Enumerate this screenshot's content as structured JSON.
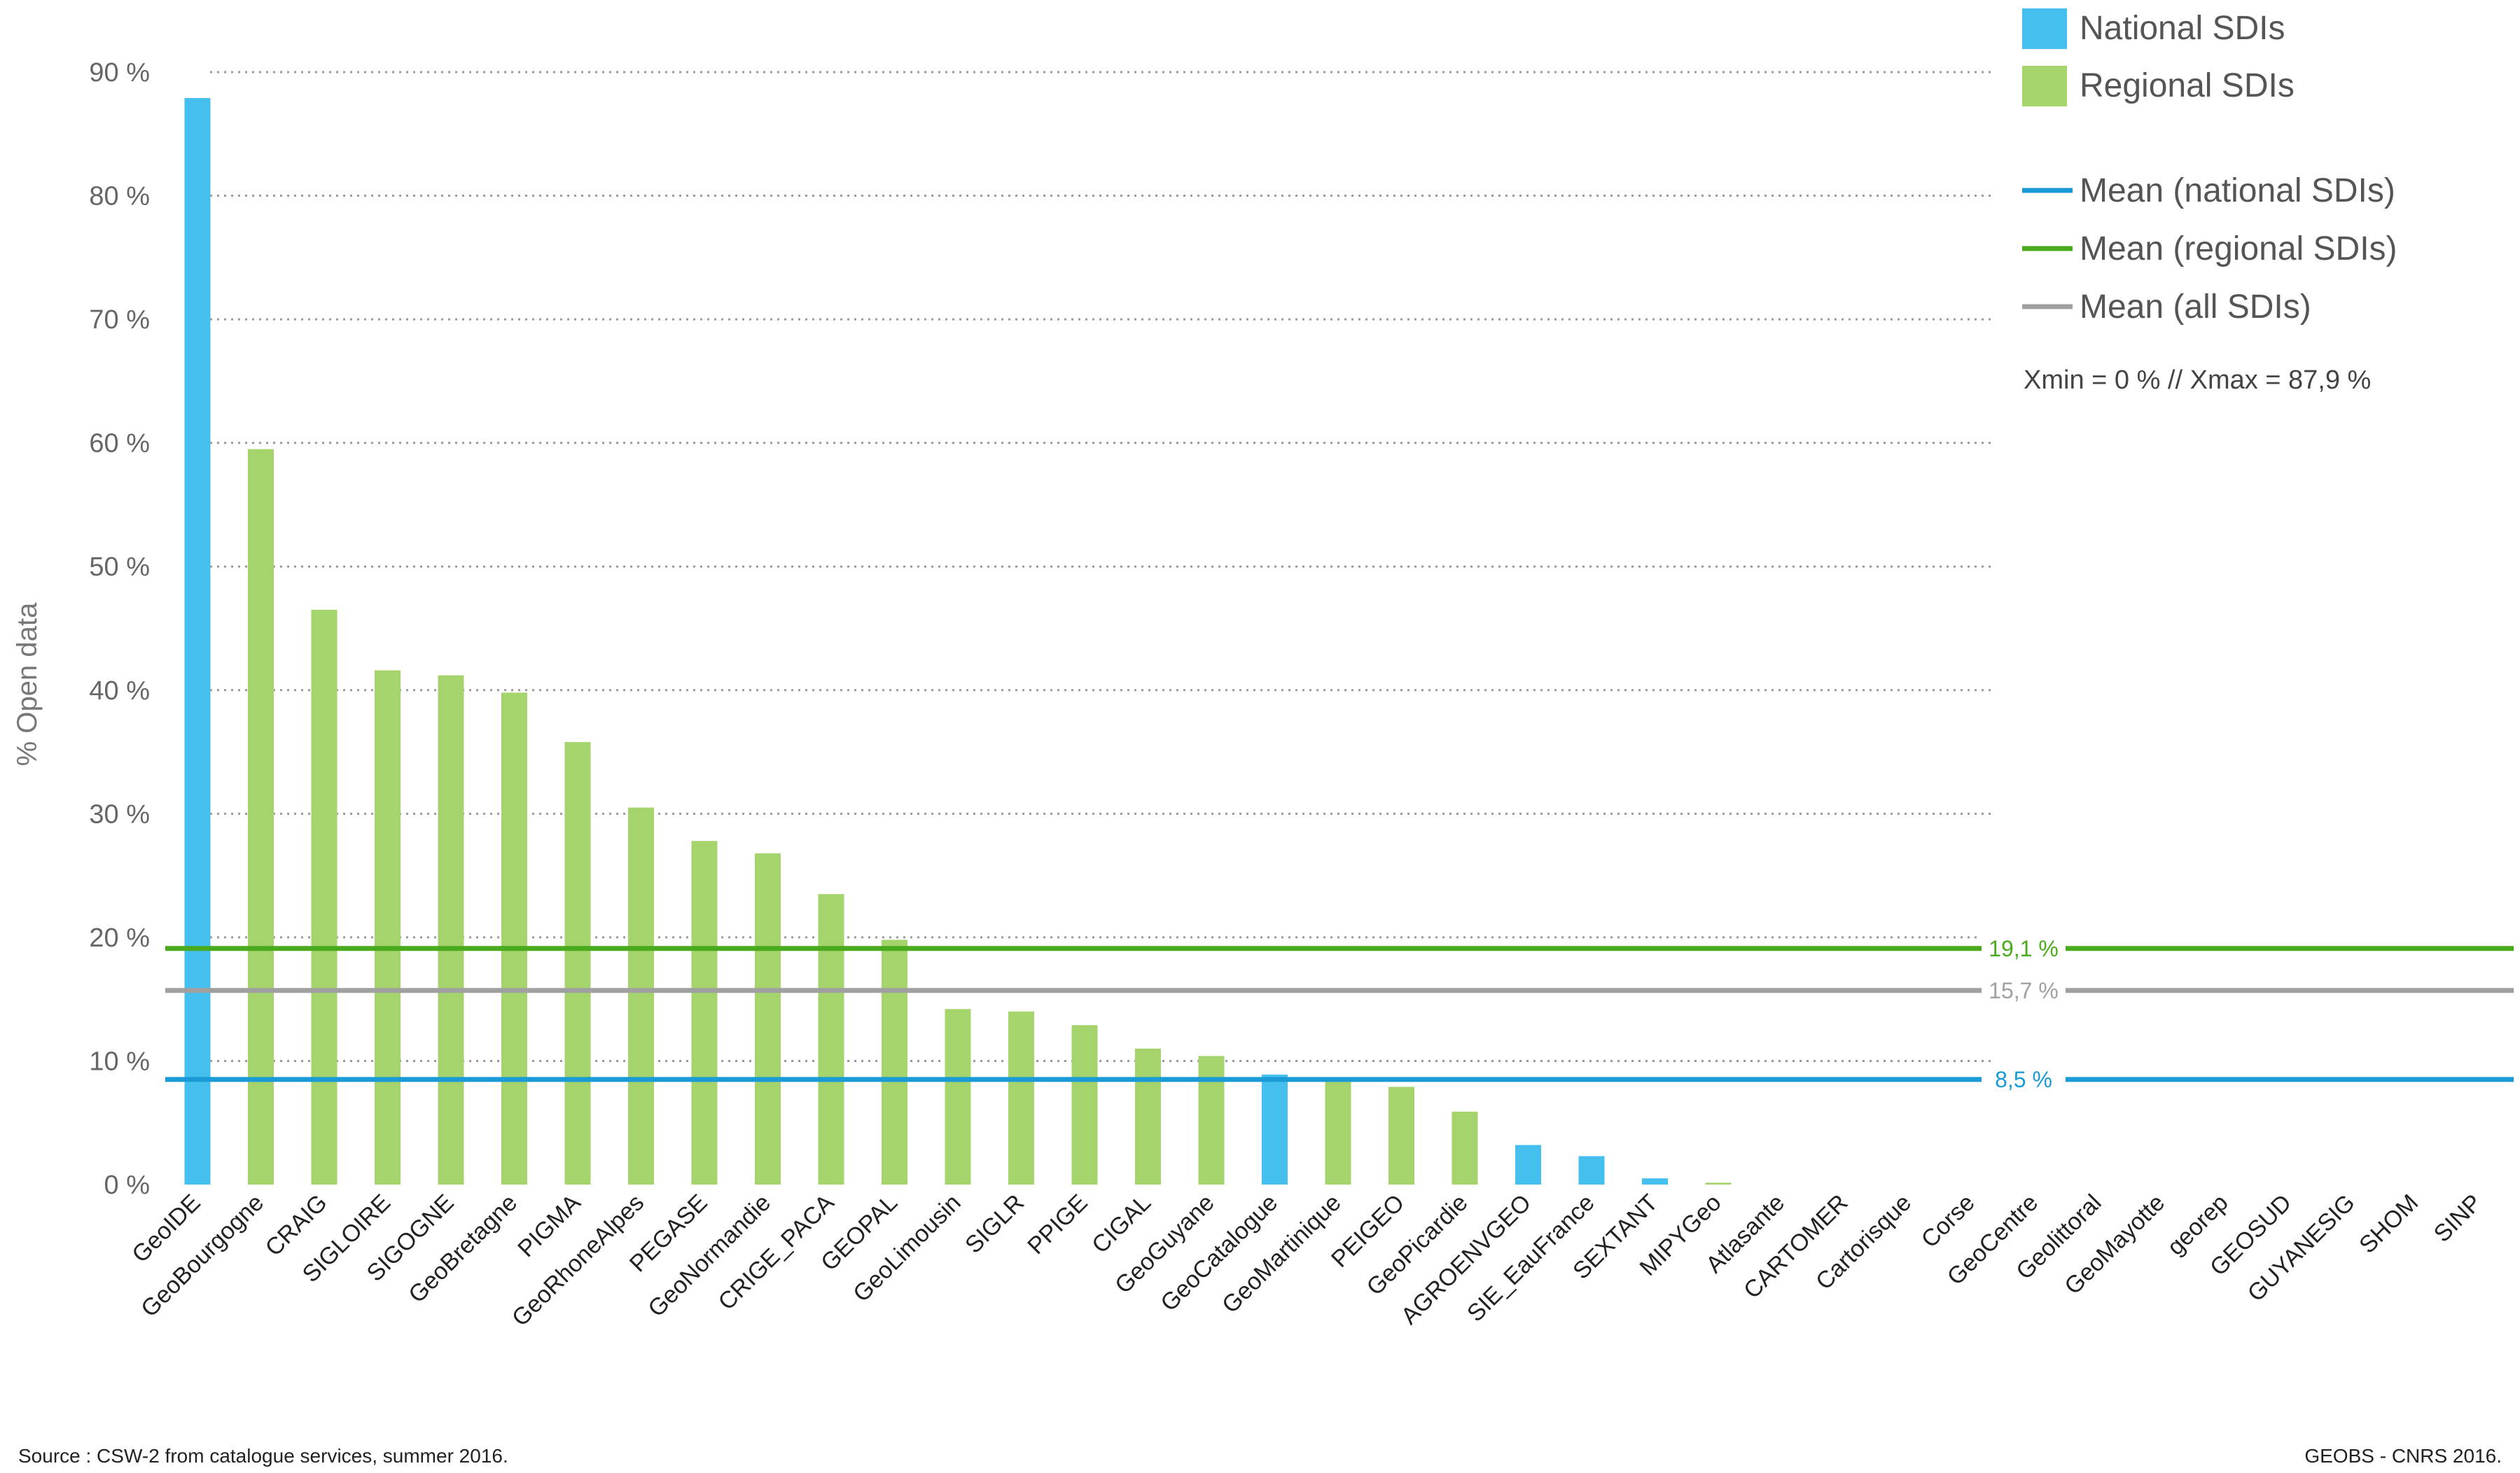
{
  "chart_data": {
    "type": "bar",
    "ylabel": "% Open data",
    "ylim": [
      0,
      90
    ],
    "yticks": [
      0,
      10,
      20,
      30,
      40,
      50,
      60,
      70,
      80,
      90
    ],
    "ytick_labels": [
      "0 %",
      "10 %",
      "20 %",
      "30 %",
      "40 %",
      "50 %",
      "60 %",
      "70 %",
      "80 %",
      "90 %"
    ],
    "grid": "horizontal dotted",
    "legend_position": "top-right",
    "categories": [
      "GeoIDE",
      "GeoBourgogne",
      "CRAIG",
      "SIGLOIRE",
      "SIGOGNE",
      "GeoBretagne",
      "PIGMA",
      "GeoRhoneAlpes",
      "PEGASE",
      "GeoNormandie",
      "CRIGE_PACA",
      "GEOPAL",
      "GeoLimousin",
      "SIGLR",
      "PPIGE",
      "CIGAL",
      "GeoGuyane",
      "GeoCatalogue",
      "GeoMartinique",
      "PEIGEO",
      "GeoPicardie",
      "AGROENVGEO",
      "SIE_EauFrance",
      "SEXTANT",
      "MIPYGeo",
      "Atlasante",
      "CARTOMER",
      "Cartorisque",
      "Corse",
      "GeoCentre",
      "Geolittoral",
      "GeoMayotte",
      "georep",
      "GEOSUD",
      "GUYANESIG",
      "SHOM",
      "SINP"
    ],
    "values": [
      87.9,
      59.5,
      46.5,
      41.6,
      41.2,
      39.8,
      35.8,
      30.5,
      27.8,
      26.8,
      23.5,
      19.8,
      14.2,
      14.0,
      12.9,
      11.0,
      10.4,
      8.9,
      8.4,
      7.9,
      5.9,
      3.2,
      2.3,
      0.5,
      0.15,
      0,
      0,
      0,
      0,
      0,
      0,
      0,
      0,
      0,
      0,
      0,
      0
    ],
    "group": [
      "national",
      "regional",
      "regional",
      "regional",
      "regional",
      "regional",
      "regional",
      "regional",
      "regional",
      "regional",
      "regional",
      "regional",
      "regional",
      "regional",
      "regional",
      "regional",
      "regional",
      "national",
      "regional",
      "regional",
      "regional",
      "national",
      "national",
      "national",
      "regional",
      "national",
      "national",
      "national",
      "regional",
      "regional",
      "national",
      "regional",
      "regional",
      "national",
      "regional",
      "national",
      "national"
    ],
    "series_colors": {
      "national": "#45C0EE",
      "regional": "#A6D46C"
    },
    "legend": [
      {
        "key": "national",
        "label": "National SDIs",
        "kind": "box",
        "color": "#45C0EE"
      },
      {
        "key": "regional",
        "label": "Regional SDIs",
        "kind": "box",
        "color": "#A6D46C"
      },
      {
        "key": "mean_national",
        "label": "Mean (national SDIs)",
        "kind": "line",
        "color": "#1A9AD6"
      },
      {
        "key": "mean_regional",
        "label": "Mean (regional SDIs)",
        "kind": "line",
        "color": "#4AAA1E"
      },
      {
        "key": "mean_all",
        "label": "Mean (all SDIs)",
        "kind": "line",
        "color": "#A0A0A0"
      }
    ],
    "means": [
      {
        "key": "mean_regional",
        "value": 19.1,
        "label": "19,1 %",
        "color": "#4AAA1E"
      },
      {
        "key": "mean_all",
        "value": 15.7,
        "label": "15,7 %",
        "color": "#A0A0A0"
      },
      {
        "key": "mean_national",
        "value": 8.5,
        "label": "8,5 %",
        "color": "#1A9AD6"
      }
    ],
    "annotation": "Xmin = 0 % // Xmax = 87,9 %"
  },
  "footer": {
    "source": "Source : CSW-2 from catalogue services, summer 2016.",
    "credit": "GEOBS - CNRS 2016."
  }
}
